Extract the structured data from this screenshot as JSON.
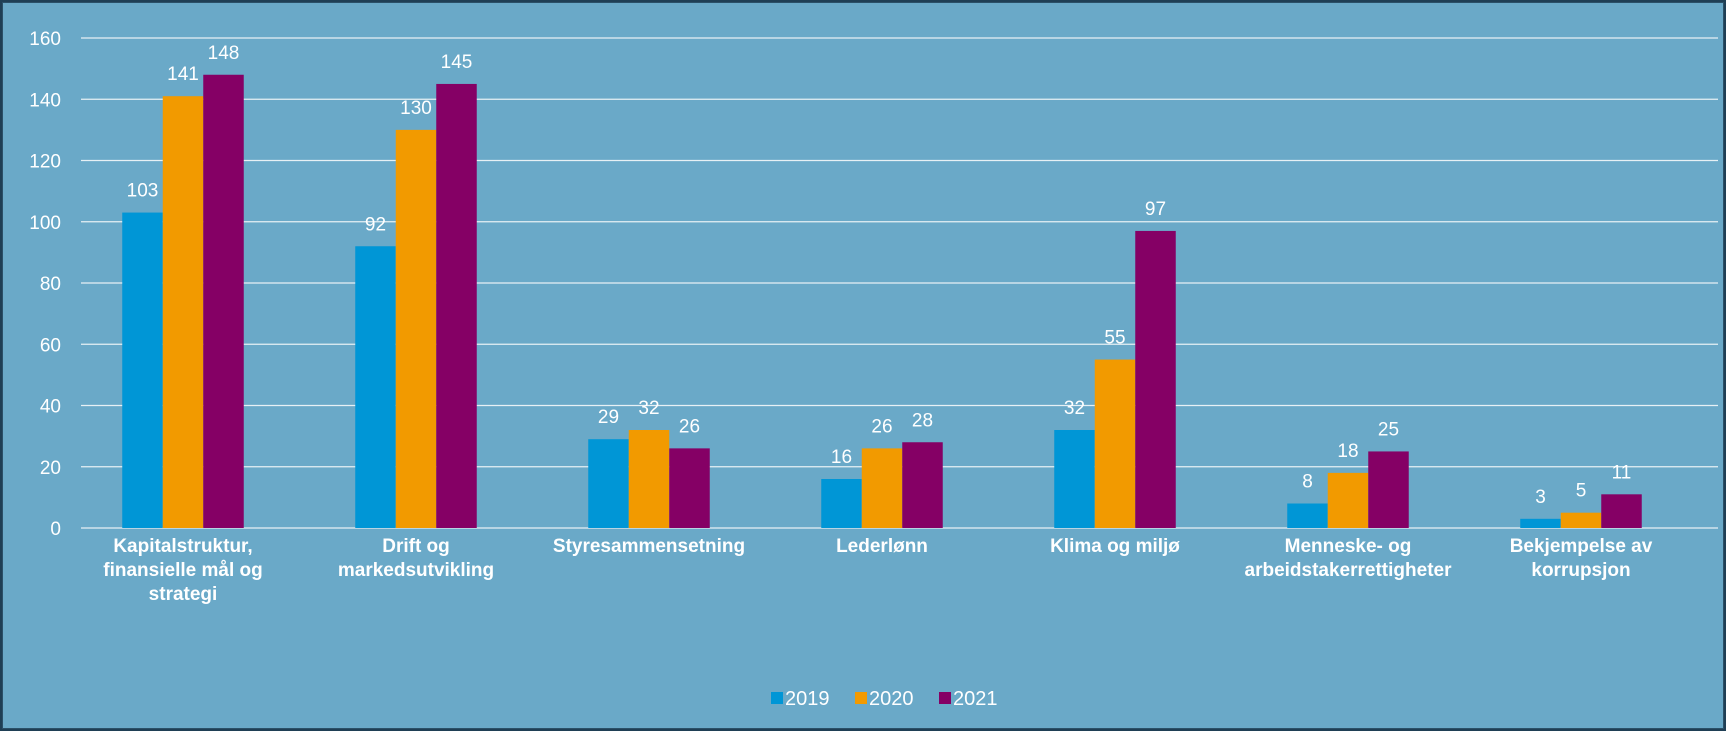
{
  "chart_data": {
    "type": "bar",
    "categories": [
      [
        "Kapitalstruktur,",
        "finansielle mål og",
        "strategi"
      ],
      [
        "Drift og",
        "markedsutvikling"
      ],
      [
        "Styresammensetning"
      ],
      [
        "Lederlønn"
      ],
      [
        "Klima og miljø"
      ],
      [
        "Menneske- og",
        "arbeidstakerrettigheter"
      ],
      [
        "Bekjempelse av",
        "korrupsjon"
      ]
    ],
    "series": [
      {
        "name": "2019",
        "color": "#0096d6",
        "values": [
          103,
          92,
          29,
          16,
          32,
          8,
          3
        ]
      },
      {
        "name": "2020",
        "color": "#f29a00",
        "values": [
          141,
          130,
          32,
          26,
          55,
          18,
          5
        ]
      },
      {
        "name": "2021",
        "color": "#850065",
        "values": [
          148,
          145,
          26,
          28,
          97,
          25,
          11
        ]
      }
    ],
    "ylim": [
      0,
      160
    ],
    "yticks": [
      0,
      20,
      40,
      60,
      80,
      100,
      120,
      140,
      160
    ],
    "grid": true,
    "legend": "bottom-center",
    "background": "#6aa9c8"
  }
}
